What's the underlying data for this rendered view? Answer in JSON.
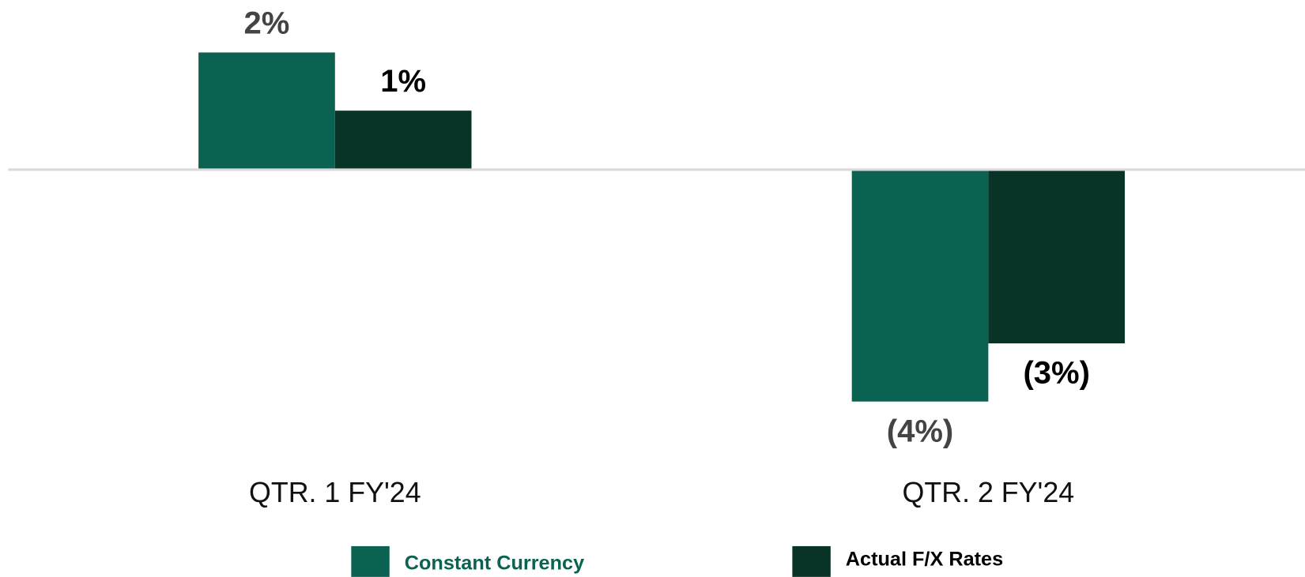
{
  "chart_data": {
    "type": "bar",
    "categories": [
      "QTR. 1 FY'24",
      "QTR. 2 FY'24"
    ],
    "series": [
      {
        "name": "Constant Currency",
        "color": "#0b6251",
        "values": [
          2,
          -4
        ],
        "value_labels": [
          "2%",
          "(4%)"
        ]
      },
      {
        "name": "Actual F/X Rates",
        "color": "#0a3328",
        "values": [
          1,
          -3
        ],
        "value_labels": [
          "1%",
          "(3%)"
        ]
      }
    ],
    "ylim": [
      -4.5,
      2.9
    ]
  }
}
